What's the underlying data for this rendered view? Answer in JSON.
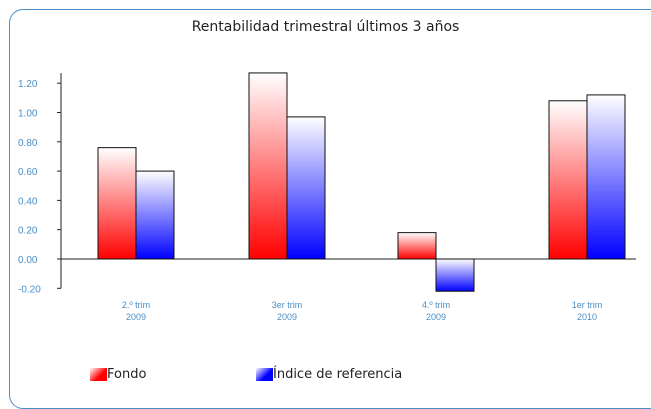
{
  "chart_data": {
    "type": "bar",
    "title": "Rentabilidad trimestral últimos 3 años",
    "categories": [
      [
        "2.º trim",
        "2009"
      ],
      [
        "3er trim",
        "2009"
      ],
      [
        "4.º trim",
        "2009"
      ],
      [
        "1er trim",
        "2010"
      ]
    ],
    "series": [
      {
        "name": "Fondo",
        "values": [
          0.76,
          1.27,
          0.18,
          1.08
        ],
        "color": "#ff0000"
      },
      {
        "name": "Índice de referencia",
        "values": [
          0.6,
          0.97,
          -0.22,
          1.12
        ],
        "color": "#0000ff"
      }
    ],
    "yticks": [
      "1.20",
      "1.00",
      "0.80",
      "0.60",
      "0.40",
      "0.20",
      "0.00",
      "-0.20"
    ],
    "ylim": [
      -0.2,
      1.3
    ],
    "grid": false,
    "legend_position": "bottom-left"
  }
}
